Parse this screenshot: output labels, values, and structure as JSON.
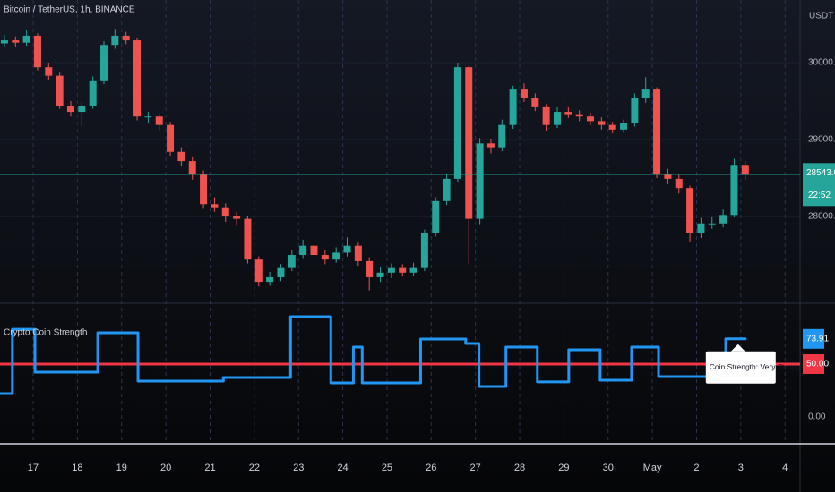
{
  "chart_data": [
    {
      "type": "candlestick",
      "title": "Bitcoin / TetherUS, 1h, BINANCE",
      "currency": "USDT",
      "up_color": "#26a69a",
      "down_color": "#ef5350",
      "x": [
        -0.65,
        -0.4,
        -0.15,
        0.1,
        0.35,
        0.6,
        0.85,
        1.1,
        1.35,
        1.6,
        1.85,
        2.1,
        2.35,
        2.6,
        2.85,
        3.1,
        3.35,
        3.6,
        3.85,
        4.1,
        4.35,
        4.6,
        4.85,
        5.1,
        5.35,
        5.6,
        5.85,
        6.1,
        6.35,
        6.6,
        6.85,
        7.1,
        7.35,
        7.6,
        7.85,
        8.1,
        8.35,
        8.6,
        8.85,
        9.1,
        9.35,
        9.6,
        9.85,
        10.1,
        10.35,
        10.6,
        10.85,
        11.1,
        11.35,
        11.6,
        11.85,
        12.1,
        12.35,
        12.6,
        12.85,
        13.1,
        13.35,
        13.6,
        13.85,
        14.1,
        14.35,
        14.6,
        14.85,
        15.1,
        15.35,
        15.6,
        15.85,
        16.1
      ],
      "candles": [
        [
          30250,
          30360,
          30200,
          30290
        ],
        [
          30290,
          30340,
          30210,
          30260
        ],
        [
          30260,
          30420,
          30220,
          30350
        ],
        [
          30350,
          30380,
          29900,
          29940
        ],
        [
          29940,
          30000,
          29780,
          29830
        ],
        [
          29830,
          29870,
          29400,
          29440
        ],
        [
          29440,
          29500,
          29300,
          29360
        ],
        [
          29360,
          29490,
          29180,
          29440
        ],
        [
          29440,
          29820,
          29400,
          29770
        ],
        [
          29770,
          30280,
          29720,
          30230
        ],
        [
          30230,
          30440,
          30180,
          30350
        ],
        [
          30350,
          30400,
          30240,
          30290
        ],
        [
          30290,
          30320,
          29250,
          29300
        ],
        [
          29300,
          29360,
          29220,
          29300
        ],
        [
          29300,
          29340,
          29120,
          29190
        ],
        [
          29190,
          29230,
          28790,
          28840
        ],
        [
          28840,
          28900,
          28650,
          28720
        ],
        [
          28720,
          28780,
          28480,
          28550
        ],
        [
          28550,
          28600,
          28100,
          28160
        ],
        [
          28160,
          28250,
          28060,
          28120
        ],
        [
          28120,
          28170,
          27930,
          28000
        ],
        [
          28000,
          28060,
          27880,
          27970
        ],
        [
          27970,
          28010,
          27390,
          27440
        ],
        [
          27440,
          27480,
          27090,
          27150
        ],
        [
          27150,
          27280,
          27100,
          27210
        ],
        [
          27210,
          27380,
          27160,
          27330
        ],
        [
          27330,
          27560,
          27290,
          27500
        ],
        [
          27500,
          27700,
          27460,
          27620
        ],
        [
          27620,
          27680,
          27440,
          27500
        ],
        [
          27500,
          27560,
          27380,
          27440
        ],
        [
          27440,
          27600,
          27400,
          27530
        ],
        [
          27530,
          27730,
          27480,
          27620
        ],
        [
          27620,
          27660,
          27360,
          27420
        ],
        [
          27420,
          27470,
          27040,
          27210
        ],
        [
          27210,
          27340,
          27150,
          27270
        ],
        [
          27270,
          27390,
          27200,
          27330
        ],
        [
          27330,
          27380,
          27220,
          27270
        ],
        [
          27270,
          27400,
          27230,
          27330
        ],
        [
          27330,
          27830,
          27290,
          27790
        ],
        [
          27790,
          28250,
          27740,
          28200
        ],
        [
          28200,
          28560,
          28150,
          28490
        ],
        [
          28490,
          30000,
          28450,
          29940
        ],
        [
          29940,
          29960,
          27380,
          27970
        ],
        [
          27970,
          29020,
          27900,
          28950
        ],
        [
          28950,
          29010,
          28820,
          28900
        ],
        [
          28900,
          29260,
          28850,
          29190
        ],
        [
          29190,
          29700,
          29140,
          29650
        ],
        [
          29650,
          29730,
          29490,
          29540
        ],
        [
          29540,
          29600,
          29370,
          29420
        ],
        [
          29420,
          29460,
          29110,
          29190
        ],
        [
          29190,
          29420,
          29150,
          29360
        ],
        [
          29360,
          29420,
          29280,
          29330
        ],
        [
          29330,
          29380,
          29240,
          29300
        ],
        [
          29300,
          29350,
          29190,
          29240
        ],
        [
          29240,
          29290,
          29130,
          29190
        ],
        [
          29190,
          29230,
          29080,
          29130
        ],
        [
          29130,
          29260,
          29090,
          29210
        ],
        [
          29210,
          29600,
          29170,
          29540
        ],
        [
          29540,
          29810,
          29480,
          29650
        ],
        [
          29650,
          29680,
          28500,
          28550
        ],
        [
          28550,
          28620,
          28420,
          28490
        ],
        [
          28490,
          28540,
          28300,
          28370
        ],
        [
          28370,
          28400,
          27670,
          27790
        ],
        [
          27790,
          27980,
          27720,
          27910
        ],
        [
          27910,
          27990,
          27840,
          27910
        ],
        [
          27910,
          28090,
          27860,
          28020
        ],
        [
          28020,
          28750,
          27990,
          28660
        ],
        [
          28660,
          28720,
          28480,
          28543.06
        ]
      ],
      "last_price": 28543.06,
      "countdown": "22:52",
      "ylim": [
        26884,
        30814
      ],
      "yticks": [
        {
          "value": 28000,
          "label": "28000.00"
        },
        {
          "value": 29000,
          "label": "29000.00"
        },
        {
          "value": 30000,
          "label": "30000.00"
        }
      ],
      "xlim": [
        -0.75,
        17.34
      ],
      "xticks": [
        {
          "value": 0,
          "label": "17"
        },
        {
          "value": 1,
          "label": "18"
        },
        {
          "value": 2,
          "label": "19"
        },
        {
          "value": 3,
          "label": "20"
        },
        {
          "value": 4,
          "label": "21"
        },
        {
          "value": 5,
          "label": "22"
        },
        {
          "value": 6,
          "label": "23"
        },
        {
          "value": 7,
          "label": "24"
        },
        {
          "value": 8,
          "label": "25"
        },
        {
          "value": 9,
          "label": "26"
        },
        {
          "value": 10,
          "label": "27"
        },
        {
          "value": 11,
          "label": "28"
        },
        {
          "value": 12,
          "label": "29"
        },
        {
          "value": 13,
          "label": "30"
        },
        {
          "value": 14,
          "label": "May"
        },
        {
          "value": 15,
          "label": "2"
        },
        {
          "value": 16,
          "label": "3"
        },
        {
          "value": 17,
          "label": "4"
        }
      ],
      "grid": true
    },
    {
      "type": "step",
      "title": "Crypto Coin Strength",
      "series": [
        {
          "color": "#2196f3",
          "x": [
            -0.75,
            -0.47,
            0.04,
            1.46,
            2.37,
            4.3,
            5.82,
            6.73,
            7.24,
            7.44,
            8.76,
            9.78,
            10.08,
            10.69,
            11.4,
            12.11,
            12.82,
            13.53,
            14.14,
            15.66,
            16.1
          ],
          "values": [
            22.0,
            83,
            42.4,
            79.7,
            33.9,
            37.3,
            94.9,
            32.2,
            66.1,
            32.2,
            73.7,
            69.5,
            28.8,
            66.1,
            33.1,
            63.6,
            34.7,
            66.1,
            38.1,
            73.91,
            73.91
          ]
        }
      ],
      "level": {
        "value": 50,
        "label": "50.00",
        "color": "#f23645"
      },
      "ylim": [
        -24.6,
        106.8
      ],
      "yticks": [
        {
          "value": 0,
          "label": "0.00"
        }
      ],
      "xlim": [
        -0.75,
        17.34
      ],
      "annotation": "Coin Strength: Very Strong"
    }
  ]
}
